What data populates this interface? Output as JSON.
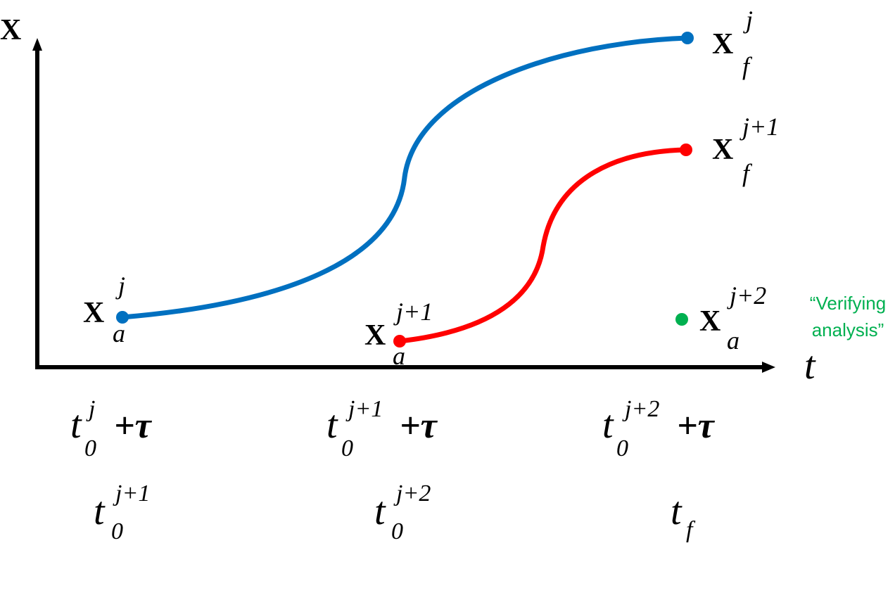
{
  "axes": {
    "y_label": "X",
    "x_label": "t"
  },
  "points": [
    {
      "base": "X",
      "sup": "j",
      "sub": "a"
    },
    {
      "base": "X",
      "sup": "j",
      "sub": "f"
    },
    {
      "base": "X",
      "sup": "j+1",
      "sub": "a"
    },
    {
      "base": "X",
      "sup": "j+1",
      "sub": "f"
    },
    {
      "base": "X",
      "sup": "j+2",
      "sub": "a"
    }
  ],
  "annotation": [
    "“Verifying",
    "analysis”"
  ],
  "time_labels": [
    [
      {
        "base": "t",
        "sub": "0",
        "sup": "j",
        "suffix": "+τ"
      },
      {
        "base": "t",
        "sub": "0",
        "sup": "j+1",
        "suffix": "+τ"
      },
      {
        "base": "t",
        "sub": "0",
        "sup": "j+2",
        "suffix": "+τ"
      }
    ],
    [
      {
        "base": "t",
        "sub": "0",
        "sup": "j+1"
      },
      {
        "base": "t",
        "sub": "0",
        "sup": "j+2"
      },
      {
        "base": "t",
        "sub": "f"
      }
    ]
  ]
}
